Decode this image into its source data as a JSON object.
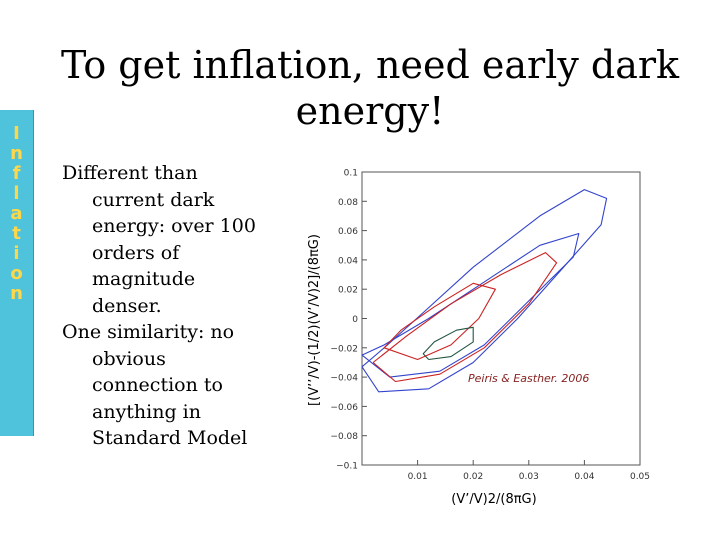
{
  "slide": {
    "title": "To get inflation, need early dark energy!",
    "sidebar_letters": [
      "I",
      "n",
      "f",
      "l",
      "a",
      "t",
      "i",
      "o",
      "n"
    ],
    "bullets": [
      "Different than current dark energy: over 100 orders of magnitude denser.",
      "One similarity: no obvious connection to anything in Standard Model"
    ]
  },
  "chart_data": {
    "type": "line",
    "title": "",
    "xlabel": "(V’/V)2/(8πG)",
    "ylabel": "[(V’’/V)-(1/2)(V’/V)2]/(8πG)",
    "xlim": [
      0,
      0.05
    ],
    "ylim": [
      -0.1,
      0.1
    ],
    "xticks": [
      0.01,
      0.02,
      0.03,
      0.04,
      0.05
    ],
    "xtick_labels": [
      "0.01",
      "0.02",
      "0.03",
      "0.04",
      "0.05"
    ],
    "yticks": [
      0.1,
      0.08,
      0.06,
      0.04,
      0.02,
      0,
      -0.02,
      -0.04,
      -0.06,
      -0.08,
      -0.1
    ],
    "ytick_labels": [
      "0.1",
      "0.08",
      "0.06",
      "0.04",
      "0.02",
      "0",
      "−0.02",
      "−0.04",
      "−0.06",
      "−0.08",
      "−0.1"
    ],
    "annotation": "Peiris & Easther. 2006",
    "series": [
      {
        "color": "#3344cc",
        "x": [
          0.0,
          0.003,
          0.012,
          0.02,
          0.028,
          0.036,
          0.043,
          0.044,
          0.04,
          0.032,
          0.02,
          0.011,
          0.004,
          0.0,
          0.0
        ],
        "y": [
          -0.033,
          -0.05,
          -0.048,
          -0.03,
          0.0,
          0.034,
          0.064,
          0.082,
          0.088,
          0.07,
          0.035,
          0.004,
          -0.02,
          -0.033,
          -0.033
        ]
      },
      {
        "color": "#3344cc",
        "x": [
          0.0,
          0.005,
          0.014,
          0.022,
          0.03,
          0.038,
          0.039,
          0.032,
          0.022,
          0.012,
          0.004,
          0.0
        ],
        "y": [
          -0.025,
          -0.04,
          -0.036,
          -0.018,
          0.012,
          0.042,
          0.058,
          0.05,
          0.025,
          0.0,
          -0.018,
          -0.025
        ]
      },
      {
        "color": "#cc2222",
        "x": [
          0.002,
          0.006,
          0.014,
          0.022,
          0.03,
          0.035,
          0.033,
          0.025,
          0.016,
          0.008,
          0.002
        ],
        "y": [
          -0.03,
          -0.043,
          -0.038,
          -0.02,
          0.01,
          0.038,
          0.045,
          0.03,
          0.01,
          -0.012,
          -0.03
        ]
      },
      {
        "color": "#cc2222",
        "x": [
          0.004,
          0.01,
          0.016,
          0.021,
          0.024,
          0.02,
          0.013,
          0.007,
          0.004
        ],
        "y": [
          -0.02,
          -0.028,
          -0.018,
          0.0,
          0.02,
          0.024,
          0.008,
          -0.008,
          -0.02
        ]
      },
      {
        "color": "#225544",
        "x": [
          0.012,
          0.016,
          0.02,
          0.02,
          0.017,
          0.013,
          0.011,
          0.012
        ],
        "y": [
          -0.028,
          -0.026,
          -0.016,
          -0.006,
          -0.008,
          -0.016,
          -0.024,
          -0.028
        ]
      }
    ]
  }
}
